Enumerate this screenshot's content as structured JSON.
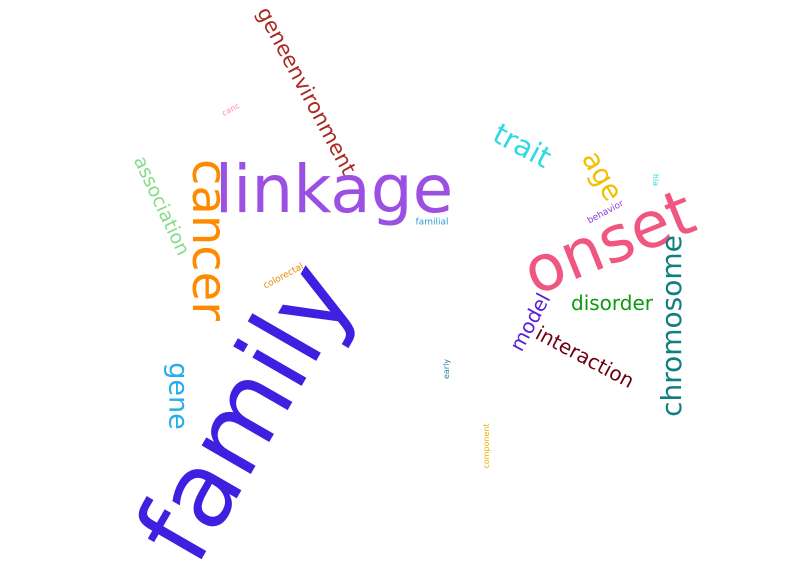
{
  "words": {
    "family": {
      "text": "family",
      "color": "#3f1fe0"
    },
    "linkage": {
      "text": "linkage",
      "color": "#9b4fe3"
    },
    "onset": {
      "text": "onset",
      "color": "#f0567f"
    },
    "cancer": {
      "text": "cancer",
      "color": "#ff8a00"
    },
    "chromosome": {
      "text": "chromosome",
      "color": "#117e82"
    },
    "geneenvironment": {
      "text": "geneenvironment",
      "color": "#a82a21"
    },
    "association": {
      "text": "association",
      "color": "#86dc86"
    },
    "gene": {
      "text": "gene",
      "color": "#28aee9"
    },
    "trait": {
      "text": "trait",
      "color": "#2ed9e1"
    },
    "age": {
      "text": "age",
      "color": "#f0c100"
    },
    "disorder": {
      "text": "disorder",
      "color": "#0c9b0c"
    },
    "interaction": {
      "text": "interaction",
      "color": "#6b0010"
    },
    "model": {
      "text": "model",
      "color": "#5a1fd9"
    },
    "colorectal": {
      "text": "colorectal",
      "color": "#e68a00"
    },
    "familial": {
      "text": "familial",
      "color": "#2aa1d0"
    },
    "behavior": {
      "text": "behavior",
      "color": "#8b3fdc"
    },
    "canc": {
      "text": "canc",
      "color": "#ff8da0"
    },
    "hla": {
      "text": "hla",
      "color": "#2ed9e1"
    },
    "early": {
      "text": "early",
      "color": "#2a7fa0"
    },
    "component": {
      "text": "component",
      "color": "#e8b500"
    }
  }
}
